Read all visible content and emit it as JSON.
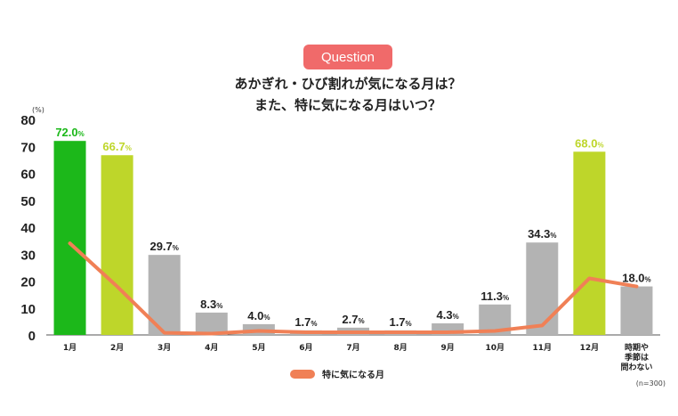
{
  "question_badge": "Question",
  "title_line1": "あかぎれ・ひび割れが気になる月は？",
  "title_line2": "また、特に気になる月はいつ？",
  "legend_label": "特に気になる月",
  "sample_note": "(n=300)",
  "colors": {
    "green": "#1cb81a",
    "yellow_green": "#bed62a",
    "gray": "#b3b3b3",
    "line": "#f08056"
  },
  "chart_data": {
    "type": "bar",
    "ylabel": "(%)",
    "ylim": [
      0,
      80
    ],
    "yticks": [
      0,
      10,
      20,
      30,
      40,
      50,
      60,
      70,
      80
    ],
    "categories": [
      "1月",
      "2月",
      "3月",
      "4月",
      "5月",
      "6月",
      "7月",
      "8月",
      "9月",
      "10月",
      "11月",
      "12月",
      "時期や季節は問わない"
    ],
    "category_lines": [
      [
        "1月"
      ],
      [
        "2月"
      ],
      [
        "3月"
      ],
      [
        "4月"
      ],
      [
        "5月"
      ],
      [
        "6月"
      ],
      [
        "7月"
      ],
      [
        "8月"
      ],
      [
        "9月"
      ],
      [
        "10月"
      ],
      [
        "11月"
      ],
      [
        "12月"
      ],
      [
        "時期や",
        "季節は",
        "問わない"
      ]
    ],
    "values": [
      72.0,
      66.7,
      29.7,
      8.3,
      4.0,
      1.7,
      2.7,
      1.7,
      4.3,
      11.3,
      34.3,
      68.0,
      18.0
    ],
    "bar_color_keys": [
      "green",
      "yellow_green",
      "gray",
      "gray",
      "gray",
      "gray",
      "gray",
      "gray",
      "gray",
      "gray",
      "gray",
      "yellow_green",
      "gray"
    ],
    "value_label_color_keys": [
      "green",
      "yellow_green",
      "dark",
      "dark",
      "dark",
      "dark",
      "dark",
      "dark",
      "dark",
      "dark",
      "dark",
      "yellow_green",
      "dark"
    ],
    "unit": "%",
    "line_series": {
      "name": "特に気になる月",
      "values": [
        34,
        18,
        0.8,
        0.5,
        1.5,
        1.0,
        1.0,
        1.0,
        1.0,
        1.5,
        3.5,
        21,
        18
      ]
    }
  }
}
